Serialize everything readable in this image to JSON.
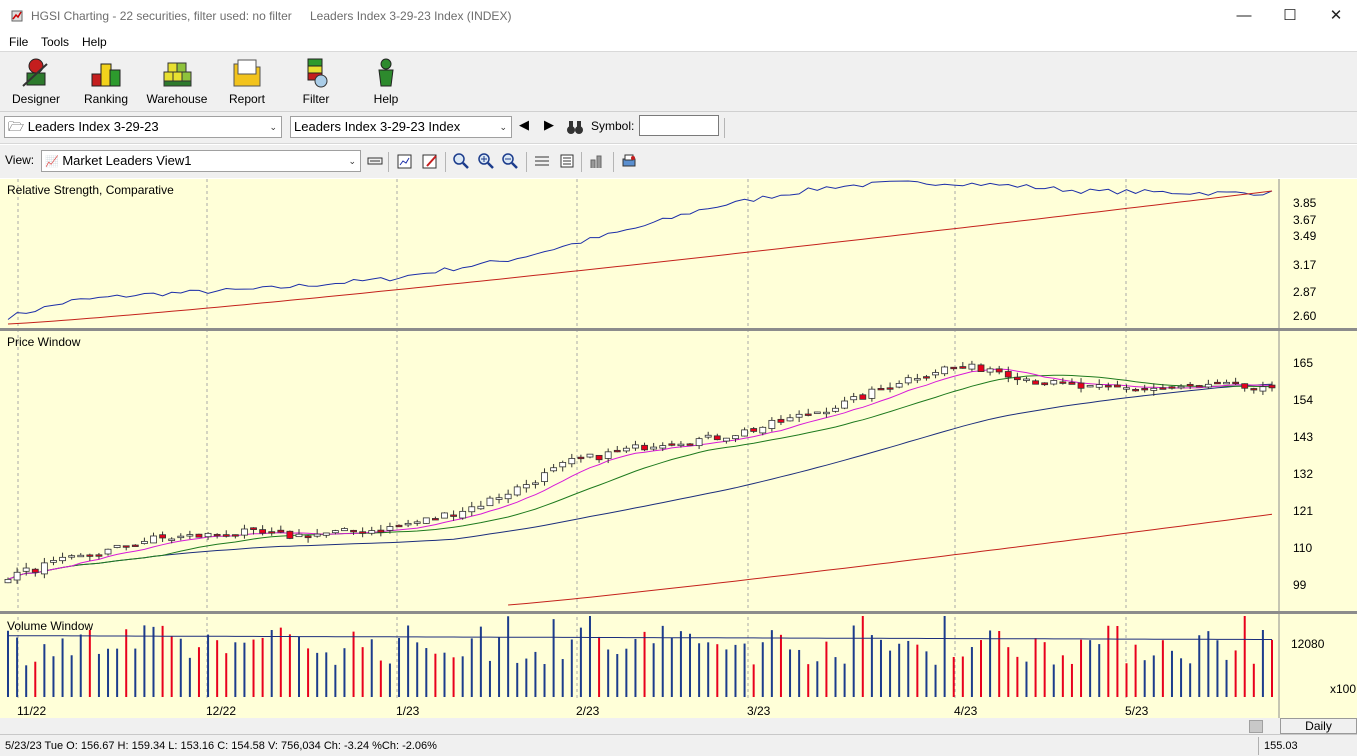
{
  "window": {
    "title": "HGSI Charting - 22 securities, filter used: no filter",
    "subtitle": "Leaders Index 3-29-23 Index (INDEX)",
    "minimize": "—",
    "maximize": "☐",
    "close": "✕"
  },
  "menu": [
    "File",
    "Tools",
    "Help"
  ],
  "toolbar": [
    {
      "label": "Designer",
      "icon": "designer-icon"
    },
    {
      "label": "Ranking",
      "icon": "ranking-icon"
    },
    {
      "label": "Warehouse",
      "icon": "warehouse-icon"
    },
    {
      "label": "Report",
      "icon": "report-icon"
    },
    {
      "label": "Filter",
      "icon": "filter-icon"
    },
    {
      "label": "Help",
      "icon": "help-icon"
    }
  ],
  "selectors": {
    "folder": "Leaders Index 3-29-23",
    "security": "Leaders Index 3-29-23 Index",
    "symbol_label": "Symbol:",
    "symbol_value": "",
    "view_label": "View:",
    "view_value": "Market Leaders View1"
  },
  "panels": {
    "rs": {
      "title": "Relative Strength, Comparative",
      "ticks": [
        "3.85",
        "3.67",
        "3.49",
        "3.17",
        "2.87",
        "2.60"
      ],
      "ylim": [
        2.52,
        3.98
      ]
    },
    "price": {
      "title": "Price Window",
      "ticks": [
        "165",
        "154",
        "143",
        "132",
        "121",
        "110",
        "99"
      ],
      "ylim": [
        90,
        168
      ]
    },
    "volume": {
      "title": "Volume Window",
      "ticks": [
        "12080"
      ],
      "multiplier": "x100"
    }
  },
  "x_axis": {
    "labels": [
      "11/22",
      "12/22",
      "1/23",
      "2/23",
      "3/23",
      "4/23",
      "5/23"
    ]
  },
  "period_button": "Daily",
  "status": {
    "text": "5/23/23 Tue O: 156.67 H: 159.34 L: 153.16 C: 154.58 V: 756,034 Ch: -3.24 %Ch: -2.06%",
    "last_price": "155.03"
  },
  "colors": {
    "chart_bg": "#ffffd8",
    "up_candle": "#ffffff",
    "down_candle": "#e8001c",
    "rs_line": "#1c2ea8",
    "rs_ma": "#c4221c",
    "ma_short": "#d81ad8",
    "ma_mid": "#1e7a1e",
    "ma_long": "#1c2e7c",
    "ma_200": "#c4221c",
    "vol_up": "#1c3c8c",
    "vol_down": "#e8001c"
  },
  "chart_data": {
    "type": "line",
    "x_labels": [
      "11/22",
      "12/22",
      "1/23",
      "2/23",
      "3/23",
      "4/23",
      "5/23"
    ],
    "price_close_keypoints": [
      100,
      104,
      107,
      111,
      112,
      113,
      112,
      113,
      114,
      117,
      121,
      127,
      134,
      137,
      140,
      141,
      144,
      148,
      152,
      158,
      162,
      162,
      158,
      156,
      156,
      156,
      157,
      155
    ],
    "rs_keypoints": [
      2.62,
      2.78,
      2.84,
      2.87,
      2.9,
      2.95,
      3.0,
      3.1,
      3.2,
      3.36,
      3.52,
      3.7,
      3.82,
      3.92,
      3.96,
      3.96,
      3.93,
      3.88,
      3.87,
      3.86,
      3.86
    ],
    "volume_avg": 10200,
    "volume_max": 12800
  }
}
